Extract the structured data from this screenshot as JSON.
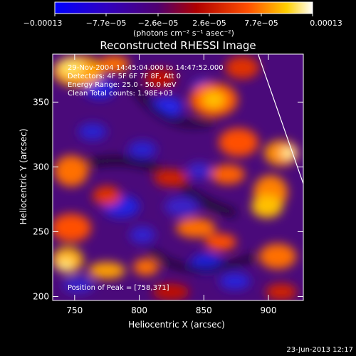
{
  "chart_data": {
    "type": "heatmap",
    "title": "Reconstructed RHESSI Image",
    "xlabel": "Heliocentric X (arcsec)",
    "ylabel": "Heliocentric Y (arcsec)",
    "xlim": [
      733,
      927
    ],
    "ylim": [
      197,
      387
    ],
    "x_ticks": [
      750,
      800,
      850,
      900
    ],
    "y_ticks": [
      200,
      250,
      300,
      350
    ],
    "colorbar": {
      "range": [
        -0.00013,
        0.00013
      ],
      "tick_labels": [
        "−0.00013",
        "−7.7e−05",
        "−2.6e−05",
        "2.6e−05",
        "7.7e−05",
        "0.00013"
      ],
      "unit_label": "(photons cm⁻² s⁻¹ asec⁻²)",
      "colors": [
        "#0000ff",
        "#400070",
        "#b00000",
        "#ff5000",
        "#ffd000",
        "#ffffff"
      ]
    },
    "annotations": {
      "time_range": "29-Nov-2004 14:45:04.000 to 14:47:52.000",
      "detectors": "Detectors: 4F 5F 6F 7F 8F, Att 0",
      "energy": "Energy Range: 25.0 - 50.0 keV",
      "method": "Clean    Total counts: 1.98E+03",
      "peak": "Position of Peak = [758,371]"
    },
    "limb_line": [
      [
        892,
        387
      ],
      [
        927,
        287
      ]
    ],
    "grid": false
  },
  "footer": {
    "timestamp": "23-Jun-2013 12:17"
  }
}
